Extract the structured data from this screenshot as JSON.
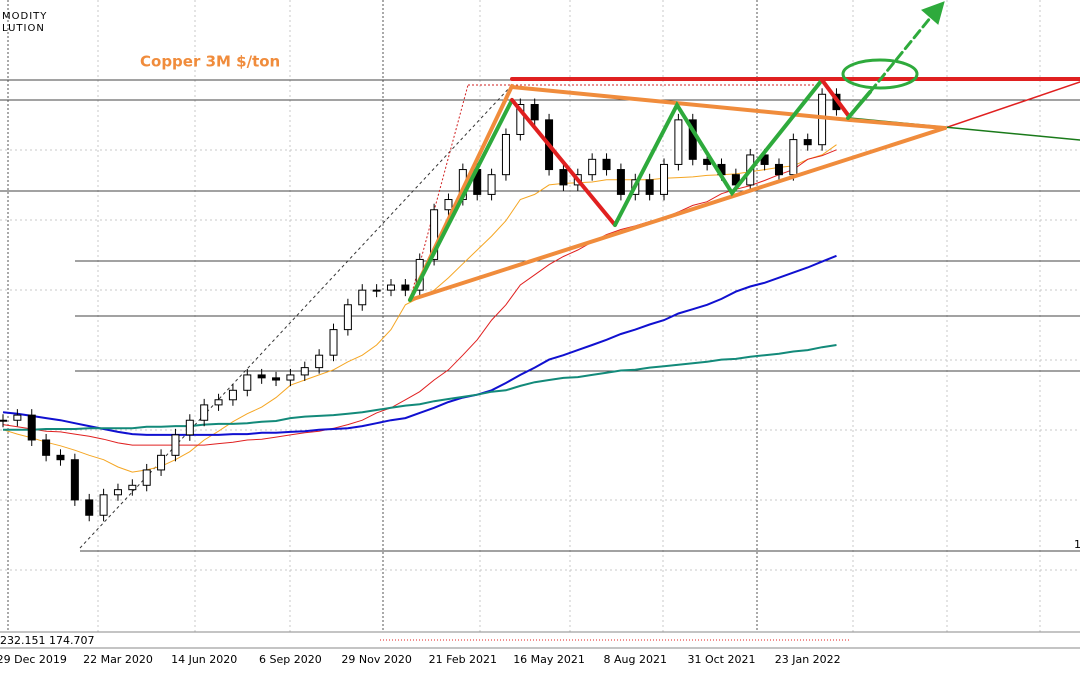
{
  "chart_data": {
    "type": "candlestick",
    "title": "Copper 3M $/ton",
    "categories": [
      null,
      null,
      "29 Dec 2019",
      null,
      null,
      null,
      null,
      null,
      "22 Mar 2020",
      null,
      null,
      null,
      null,
      null,
      "14 Jun 2020",
      null,
      null,
      null,
      null,
      null,
      "6 Sep 2020",
      null,
      null,
      null,
      null,
      null,
      "29 Nov 2020",
      null,
      null,
      null,
      null,
      null,
      "21 Feb 2021",
      null,
      null,
      null,
      null,
      null,
      "16 May 2021",
      null,
      null,
      null,
      null,
      null,
      "8 Aug 2021",
      null,
      null,
      null,
      null,
      null,
      "31 Oct 2021",
      null,
      null,
      null,
      null,
      null,
      "23 Jan 2022",
      null,
      null
    ],
    "values": [
      6120,
      6190,
      5850,
      5640,
      5580,
      5030,
      4820,
      5100,
      5170,
      5230,
      5440,
      5640,
      5920,
      6120,
      6330,
      6400,
      6530,
      6740,
      6700,
      6670,
      6740,
      6840,
      7010,
      7360,
      7700,
      7900,
      7900,
      7970,
      7900,
      8320,
      9000,
      9140,
      9550,
      9210,
      9480,
      10030,
      10440,
      10230,
      9550,
      9340,
      9480,
      9690,
      9550,
      9210,
      9410,
      9210,
      9620,
      10230,
      9690,
      9620,
      9480,
      9340,
      9750,
      9620,
      9480,
      9960,
      9890,
      10580,
      10370
    ],
    "up_color": "#ffffff",
    "down_color": "#000000",
    "moving_averages": [
      {
        "color": "#f5a623",
        "values": [
          5990,
          5930,
          5880,
          5820,
          5770,
          5710,
          5640,
          5580,
          5480,
          5410,
          5440,
          5490,
          5580,
          5690,
          5850,
          5970,
          6100,
          6210,
          6300,
          6430,
          6600,
          6670,
          6740,
          6810,
          6920,
          7010,
          7150,
          7360,
          7700,
          7800,
          7900,
          8070,
          8260,
          8450,
          8640,
          8850,
          9140,
          9210,
          9340,
          9360,
          9370,
          9380,
          9410,
          9410,
          9410,
          9410,
          9430,
          9440,
          9450,
          9470,
          9480,
          9490,
          9520,
          9550,
          9580,
          9600,
          9690,
          9750,
          9890
        ]
      },
      {
        "color": "#e02020",
        "values": [
          6060,
          6030,
          6000,
          5970,
          5960,
          5930,
          5900,
          5860,
          5810,
          5780,
          5780,
          5780,
          5780,
          5780,
          5780,
          5800,
          5820,
          5850,
          5860,
          5890,
          5920,
          5950,
          5970,
          6010,
          6060,
          6120,
          6220,
          6290,
          6400,
          6510,
          6670,
          6810,
          7010,
          7220,
          7490,
          7700,
          7970,
          8110,
          8250,
          8360,
          8450,
          8560,
          8660,
          8730,
          8780,
          8840,
          8890,
          8970,
          9060,
          9110,
          9220,
          9280,
          9330,
          9400,
          9480,
          9550,
          9690,
          9740,
          9820
        ]
      },
      {
        "color": "#1010d0",
        "values": [
          6230,
          6210,
          6180,
          6150,
          6120,
          6080,
          6040,
          6000,
          5960,
          5930,
          5920,
          5920,
          5920,
          5920,
          5920,
          5920,
          5930,
          5930,
          5950,
          5950,
          5960,
          5970,
          5990,
          6000,
          6010,
          6040,
          6080,
          6120,
          6150,
          6220,
          6290,
          6370,
          6430,
          6470,
          6530,
          6630,
          6740,
          6840,
          6950,
          7010,
          7080,
          7150,
          7220,
          7300,
          7360,
          7430,
          7490,
          7580,
          7640,
          7700,
          7780,
          7880,
          7950,
          8000,
          8070,
          8140,
          8210,
          8290,
          8370
        ]
      },
      {
        "color": "#138a7a",
        "values": [
          5990,
          5990,
          5990,
          6000,
          6000,
          6000,
          6010,
          6010,
          6010,
          6010,
          6030,
          6030,
          6040,
          6040,
          6060,
          6070,
          6070,
          6080,
          6100,
          6110,
          6150,
          6170,
          6180,
          6190,
          6210,
          6230,
          6260,
          6290,
          6320,
          6340,
          6380,
          6410,
          6440,
          6470,
          6510,
          6530,
          6590,
          6640,
          6670,
          6700,
          6710,
          6740,
          6770,
          6800,
          6810,
          6840,
          6860,
          6880,
          6900,
          6920,
          6950,
          6960,
          6990,
          7010,
          7030,
          7060,
          7080,
          7120,
          7150
        ]
      }
    ],
    "ylim": [
      3250,
      11870
    ]
  },
  "logo": [
    "MODITY",
    "LUTION"
  ],
  "indicator_label": "232.151 174.707",
  "right_edge_label": "1"
}
